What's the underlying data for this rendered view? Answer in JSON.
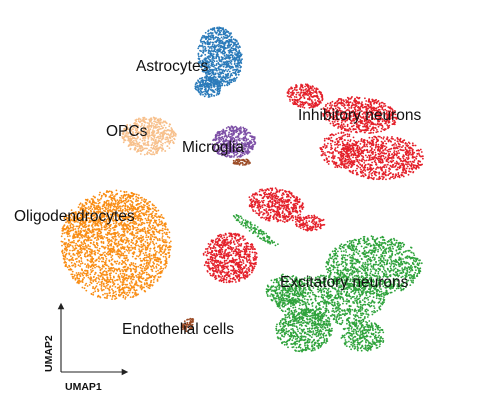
{
  "chart_data": {
    "type": "scatter",
    "title": "",
    "xlabel": "UMAP1",
    "ylabel": "UMAP2",
    "grid": false,
    "legend": "none",
    "clusters": [
      {
        "name": "Astrocytes",
        "color": "#2b7bba"
      },
      {
        "name": "Inhibitory neurons",
        "color": "#e4202a"
      },
      {
        "name": "OPCs",
        "color": "#f7c08c"
      },
      {
        "name": "Microglia",
        "color": "#7d4fa6"
      },
      {
        "name": "Oligodendrocytes",
        "color": "#f98d14"
      },
      {
        "name": "Excitatory neurons",
        "color": "#2fa33c"
      },
      {
        "name": "Endothelial cells",
        "color": "#9c4c26"
      }
    ]
  }
}
